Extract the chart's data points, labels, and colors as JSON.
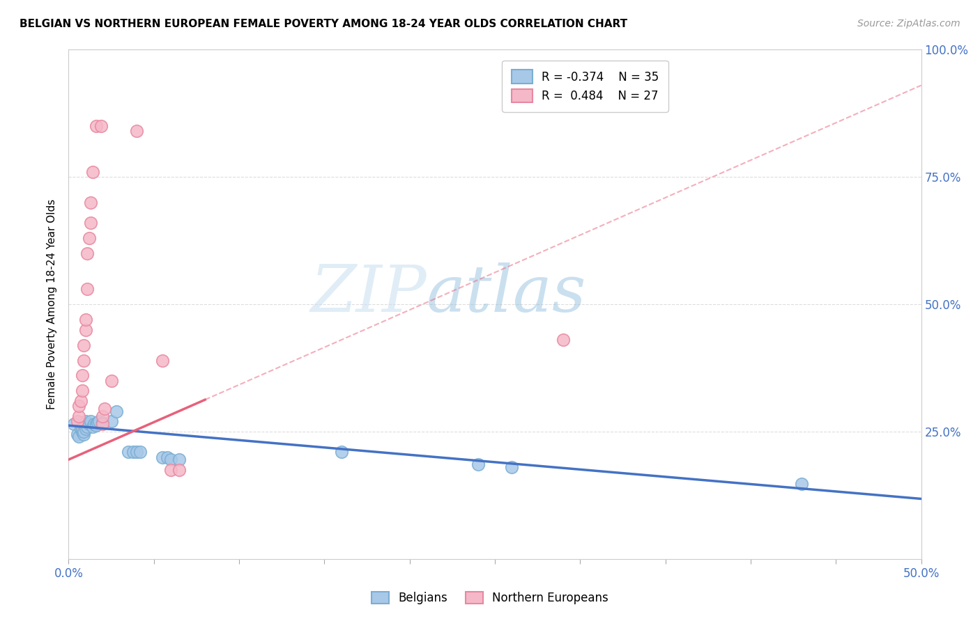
{
  "title": "BELGIAN VS NORTHERN EUROPEAN FEMALE POVERTY AMONG 18-24 YEAR OLDS CORRELATION CHART",
  "source": "Source: ZipAtlas.com",
  "ylabel": "Female Poverty Among 18-24 Year Olds",
  "legend_belgian_r": "-0.374",
  "legend_belgian_n": "35",
  "legend_northern_r": "0.484",
  "legend_northern_n": "27",
  "watermark_zip": "ZIP",
  "watermark_atlas": "atlas",
  "belgian_color": "#a8c8e8",
  "belgian_edge": "#7aaed4",
  "northern_color": "#f5b8c8",
  "northern_edge": "#e888a0",
  "belgian_line_color": "#4472c4",
  "northern_line_color": "#e8607a",
  "belgian_scatter": [
    [
      0.003,
      0.265
    ],
    [
      0.005,
      0.245
    ],
    [
      0.006,
      0.24
    ],
    [
      0.007,
      0.255
    ],
    [
      0.008,
      0.25
    ],
    [
      0.008,
      0.255
    ],
    [
      0.009,
      0.245
    ],
    [
      0.009,
      0.25
    ],
    [
      0.01,
      0.265
    ],
    [
      0.01,
      0.27
    ],
    [
      0.01,
      0.255
    ],
    [
      0.011,
      0.26
    ],
    [
      0.012,
      0.265
    ],
    [
      0.013,
      0.27
    ],
    [
      0.014,
      0.26
    ],
    [
      0.015,
      0.265
    ],
    [
      0.016,
      0.265
    ],
    [
      0.016,
      0.262
    ],
    [
      0.017,
      0.268
    ],
    [
      0.018,
      0.27
    ],
    [
      0.02,
      0.268
    ],
    [
      0.025,
      0.27
    ],
    [
      0.028,
      0.29
    ],
    [
      0.035,
      0.21
    ],
    [
      0.038,
      0.21
    ],
    [
      0.04,
      0.21
    ],
    [
      0.042,
      0.21
    ],
    [
      0.055,
      0.2
    ],
    [
      0.058,
      0.2
    ],
    [
      0.06,
      0.195
    ],
    [
      0.065,
      0.195
    ],
    [
      0.16,
      0.21
    ],
    [
      0.24,
      0.185
    ],
    [
      0.26,
      0.18
    ],
    [
      0.43,
      0.148
    ]
  ],
  "northern_scatter": [
    [
      0.005,
      0.27
    ],
    [
      0.006,
      0.28
    ],
    [
      0.006,
      0.3
    ],
    [
      0.007,
      0.31
    ],
    [
      0.008,
      0.33
    ],
    [
      0.008,
      0.36
    ],
    [
      0.009,
      0.39
    ],
    [
      0.009,
      0.42
    ],
    [
      0.01,
      0.45
    ],
    [
      0.01,
      0.47
    ],
    [
      0.011,
      0.53
    ],
    [
      0.011,
      0.6
    ],
    [
      0.012,
      0.63
    ],
    [
      0.013,
      0.66
    ],
    [
      0.013,
      0.7
    ],
    [
      0.014,
      0.76
    ],
    [
      0.016,
      0.85
    ],
    [
      0.019,
      0.85
    ],
    [
      0.02,
      0.265
    ],
    [
      0.02,
      0.28
    ],
    [
      0.021,
      0.295
    ],
    [
      0.025,
      0.35
    ],
    [
      0.055,
      0.39
    ],
    [
      0.06,
      0.175
    ],
    [
      0.065,
      0.175
    ],
    [
      0.29,
      0.43
    ],
    [
      0.04,
      0.84
    ]
  ],
  "xlim": [
    0.0,
    0.5
  ],
  "ylim": [
    0.0,
    1.0
  ],
  "belgian_trend_x": [
    0.0,
    0.5
  ],
  "belgian_trend_y": [
    0.262,
    0.118
  ],
  "northern_trend_x": [
    0.0,
    0.5
  ],
  "northern_trend_y": [
    0.195,
    0.93
  ],
  "northern_trend_solid_end": 0.08,
  "right_yticks": [
    0.25,
    0.5,
    0.75,
    1.0
  ],
  "right_yticklabels": [
    "25.0%",
    "50.0%",
    "75.0%",
    "100.0%"
  ],
  "grid_color": "#dddddd",
  "title_fontsize": 11,
  "source_fontsize": 10,
  "tick_fontsize": 12,
  "legend_fontsize": 12
}
